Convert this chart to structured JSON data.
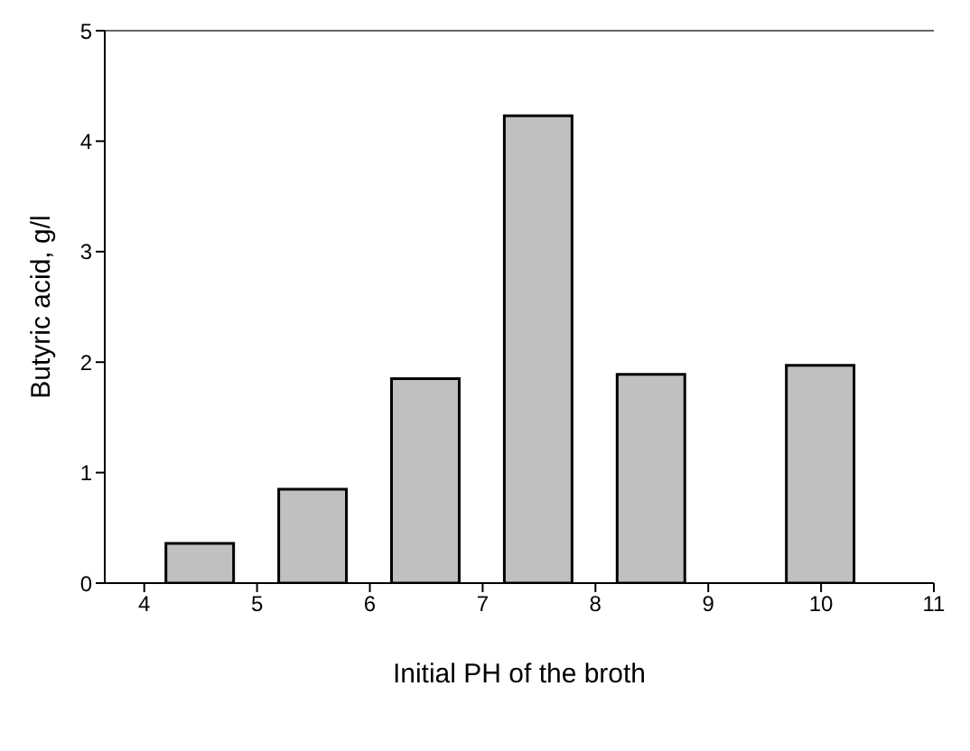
{
  "chart_data": {
    "type": "bar",
    "xlabel": "Initial PH of the broth",
    "ylabel": "Butyric acid, g/l",
    "x": [
      4.5,
      5.5,
      6.5,
      7.5,
      8.5,
      10
    ],
    "values": [
      0.36,
      0.85,
      1.85,
      4.23,
      1.89,
      1.97
    ],
    "color": "#c0c0c0",
    "xlim": [
      3.65,
      11
    ],
    "xticks": [
      4,
      5,
      6,
      7,
      8,
      9,
      10,
      11
    ],
    "ylim": [
      0,
      5
    ],
    "yticks": [
      0,
      1,
      2,
      3,
      4,
      5
    ]
  }
}
